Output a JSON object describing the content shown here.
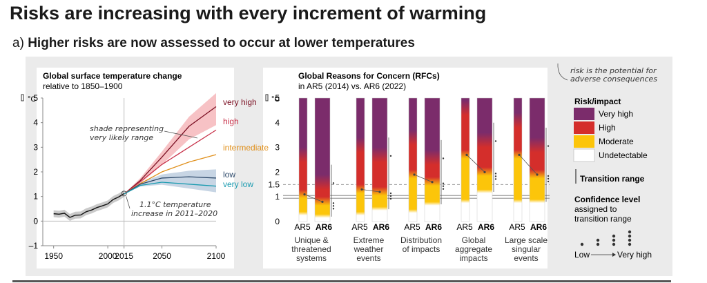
{
  "title": "Risks are increasing with every increment of warming",
  "subtitle": {
    "letter": "a)",
    "text": "Higher risks are now assessed to occur at lower temperatures"
  },
  "colors": {
    "very_high": "#7b2c6b",
    "high": "#d42e2b",
    "moderate": "#fcc50a",
    "undetectable": "#ffffff",
    "scen_very_high": "#7b1023",
    "scen_high": "#c8324a",
    "scen_intermediate": "#e08f1a",
    "scen_low": "#2e4a6b",
    "scen_very_low": "#1a9bb0",
    "historical": "#111111"
  },
  "chart_data": [
    {
      "type": "line",
      "title": "Global surface temperature change",
      "subtitle": "relative to 1850–1900",
      "unit": "°C",
      "ylim": [
        -1,
        5
      ],
      "yticks": [
        "5",
        "4",
        "3",
        "2",
        "1",
        "0",
        "–1"
      ],
      "xlim": [
        1940,
        2100
      ],
      "xticks": [
        "1950",
        "2000",
        "2015",
        "2050",
        "2100"
      ],
      "historical": [
        [
          1950,
          0.3
        ],
        [
          1955,
          0.28
        ],
        [
          1960,
          0.32
        ],
        [
          1965,
          0.15
        ],
        [
          1970,
          0.24
        ],
        [
          1975,
          0.25
        ],
        [
          1980,
          0.38
        ],
        [
          1985,
          0.45
        ],
        [
          1990,
          0.55
        ],
        [
          1995,
          0.62
        ],
        [
          2000,
          0.7
        ],
        [
          2005,
          0.88
        ],
        [
          2010,
          0.98
        ],
        [
          2015,
          1.12
        ]
      ],
      "series": [
        {
          "name": "very high",
          "values": [
            [
              2015,
              1.1
            ],
            [
              2030,
              1.65
            ],
            [
              2050,
              2.6
            ],
            [
              2075,
              3.85
            ],
            [
              2100,
              4.65
            ]
          ]
        },
        {
          "name": "high",
          "values": [
            [
              2015,
              1.1
            ],
            [
              2030,
              1.6
            ],
            [
              2050,
              2.3
            ],
            [
              2075,
              3.0
            ],
            [
              2100,
              3.7
            ]
          ]
        },
        {
          "name": "intermediate",
          "values": [
            [
              2015,
              1.1
            ],
            [
              2030,
              1.52
            ],
            [
              2050,
              2.0
            ],
            [
              2075,
              2.4
            ],
            [
              2100,
              2.7
            ]
          ]
        },
        {
          "name": "low",
          "values": [
            [
              2015,
              1.1
            ],
            [
              2030,
              1.5
            ],
            [
              2050,
              1.75
            ],
            [
              2075,
              1.8
            ],
            [
              2100,
              1.75
            ]
          ]
        },
        {
          "name": "very low",
          "values": [
            [
              2015,
              1.1
            ],
            [
              2030,
              1.45
            ],
            [
              2050,
              1.58
            ],
            [
              2075,
              1.5
            ],
            [
              2100,
              1.42
            ]
          ]
        }
      ],
      "annotations": {
        "shade": [
          "shade representing",
          "very likely range"
        ],
        "temp": [
          "1.1°C temperature",
          "increase in 2011–2020"
        ]
      }
    },
    {
      "type": "bar",
      "title": "Global Reasons for Concern (RFCs)",
      "subtitle": "in AR5 (2014) vs. AR6 (2022)",
      "unit": "°C",
      "ylim": [
        0,
        5
      ],
      "yticks": [
        "5",
        "4",
        "3",
        "2",
        "1.5",
        "1",
        "0"
      ],
      "reference_lines": [
        1.5,
        1.0
      ],
      "groups": [
        {
          "name": [
            "Unique &",
            "threatened",
            "systems"
          ],
          "bars": [
            {
              "label": "AR5",
              "undetectable_below": 0.3,
              "moderate_to": 1.1,
              "high_to": 2.6
            },
            {
              "label": "AR6",
              "undetectable_below": 0.2,
              "moderate_to": 0.8,
              "high_to": 1.5
            }
          ]
        },
        {
          "name": [
            "Extreme",
            "weather",
            "events"
          ],
          "bars": [
            {
              "label": "AR5",
              "undetectable_below": 0.3,
              "moderate_to": 1.3,
              "high_to": 3.0
            },
            {
              "label": "AR6",
              "undetectable_below": 0.5,
              "moderate_to": 1.2,
              "high_to": 2.6
            }
          ]
        },
        {
          "name": [
            "Distribution",
            "of impacts"
          ],
          "bars": [
            {
              "label": "AR5",
              "undetectable_below": 0.4,
              "moderate_to": 1.9,
              "high_to": 3.3
            },
            {
              "label": "AR6",
              "undetectable_below": 0.7,
              "moderate_to": 1.6,
              "high_to": 2.5
            }
          ]
        },
        {
          "name": [
            "Global",
            "aggregate",
            "impacts"
          ],
          "bars": [
            {
              "label": "AR5",
              "undetectable_below": 0.8,
              "moderate_to": 2.7,
              "high_to": 4.5
            },
            {
              "label": "AR6",
              "undetectable_below": 1.2,
              "moderate_to": 2.0,
              "high_to": 3.2
            }
          ]
        },
        {
          "name": [
            "Large scale",
            "singular",
            "events"
          ],
          "bars": [
            {
              "label": "AR5",
              "undetectable_below": 0.8,
              "moderate_to": 2.7,
              "high_to": 4.0
            },
            {
              "label": "AR6",
              "undetectable_below": 0.8,
              "moderate_to": 1.9,
              "high_to": 3.0
            }
          ]
        }
      ],
      "legend": {
        "note": [
          "risk is the potential for",
          "adverse consequences"
        ],
        "heading": "Risk/impact",
        "items": [
          "Very high",
          "High",
          "Moderate",
          "Undetectable"
        ],
        "transition": "Transition range",
        "confidence": [
          "Confidence level",
          "assigned to",
          "transition range"
        ],
        "low": "Low",
        "very_high": "Very high"
      }
    }
  ]
}
